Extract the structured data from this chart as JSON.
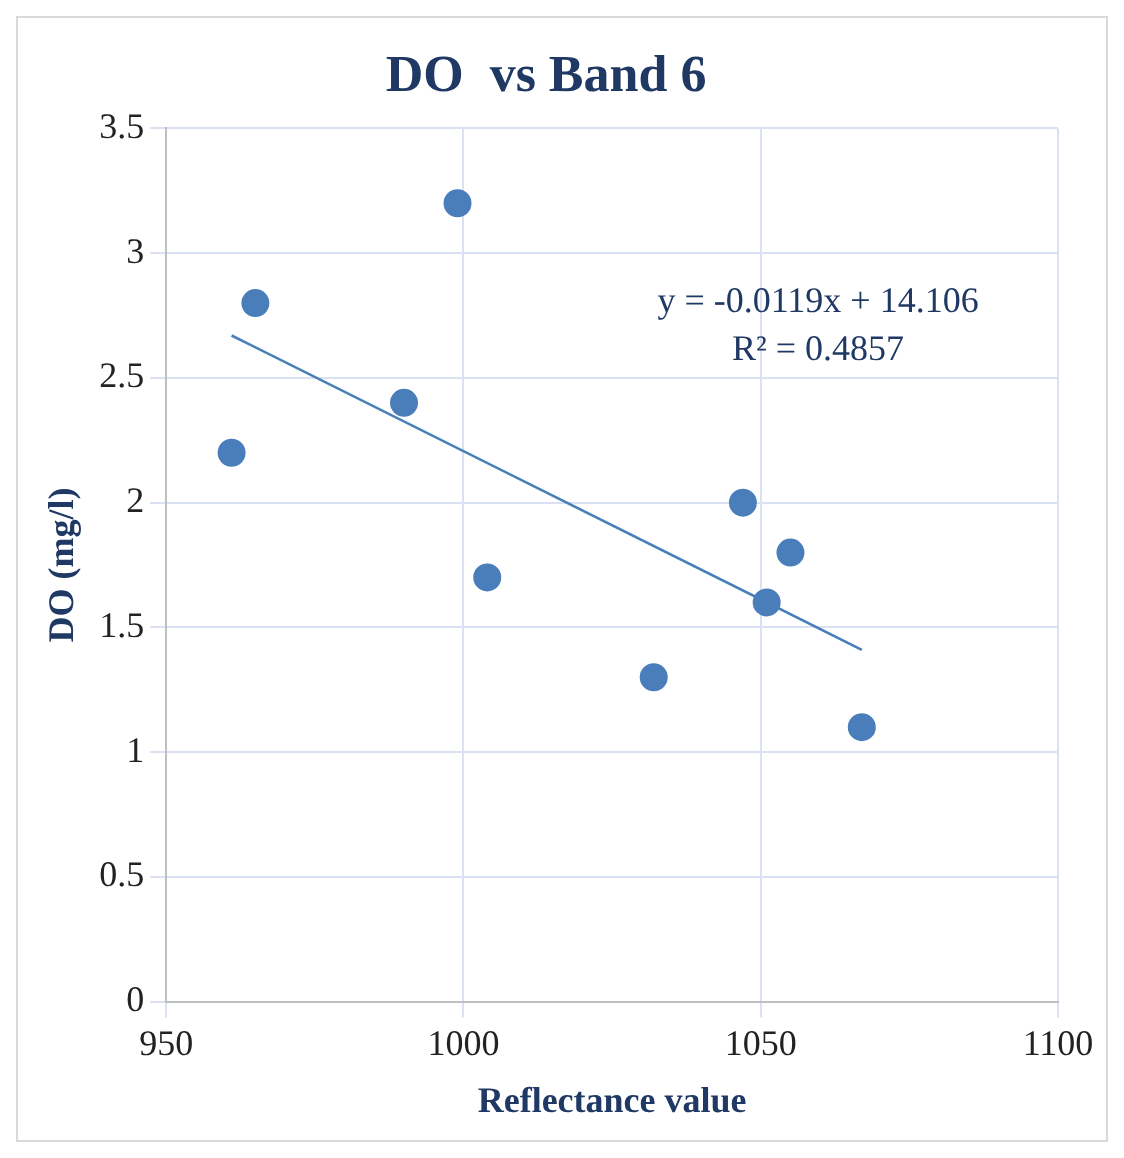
{
  "chart_data": {
    "type": "scatter",
    "title": "DO  vs Band 6",
    "xlabel": "Reflectance value",
    "ylabel": "DO (mg/l)",
    "series": [
      {
        "type": "scatter",
        "marker": "circle",
        "color": "#4a7ebb",
        "x": [
          961,
          965,
          990,
          999,
          1004,
          1032,
          1047,
          1051,
          1055,
          1067
        ],
        "values": [
          2.2,
          2.8,
          2.4,
          3.2,
          1.7,
          1.3,
          2.0,
          1.6,
          1.8,
          1.1
        ]
      },
      {
        "type": "line",
        "color": "#4a7ebb",
        "x": [
          961,
          1067
        ],
        "values": [
          2.67,
          1.41
        ]
      }
    ],
    "xlim": [
      950,
      1100
    ],
    "xticks": [
      950,
      1000,
      1050,
      1100
    ],
    "ylim": [
      0,
      3.5
    ],
    "yticks": [
      0,
      0.5,
      1,
      1.5,
      2,
      2.5,
      3,
      3.5
    ],
    "grid": true,
    "legend": false,
    "annotations": [
      "y = -0.0119x + 14.106",
      "R² = 0.4857"
    ]
  }
}
